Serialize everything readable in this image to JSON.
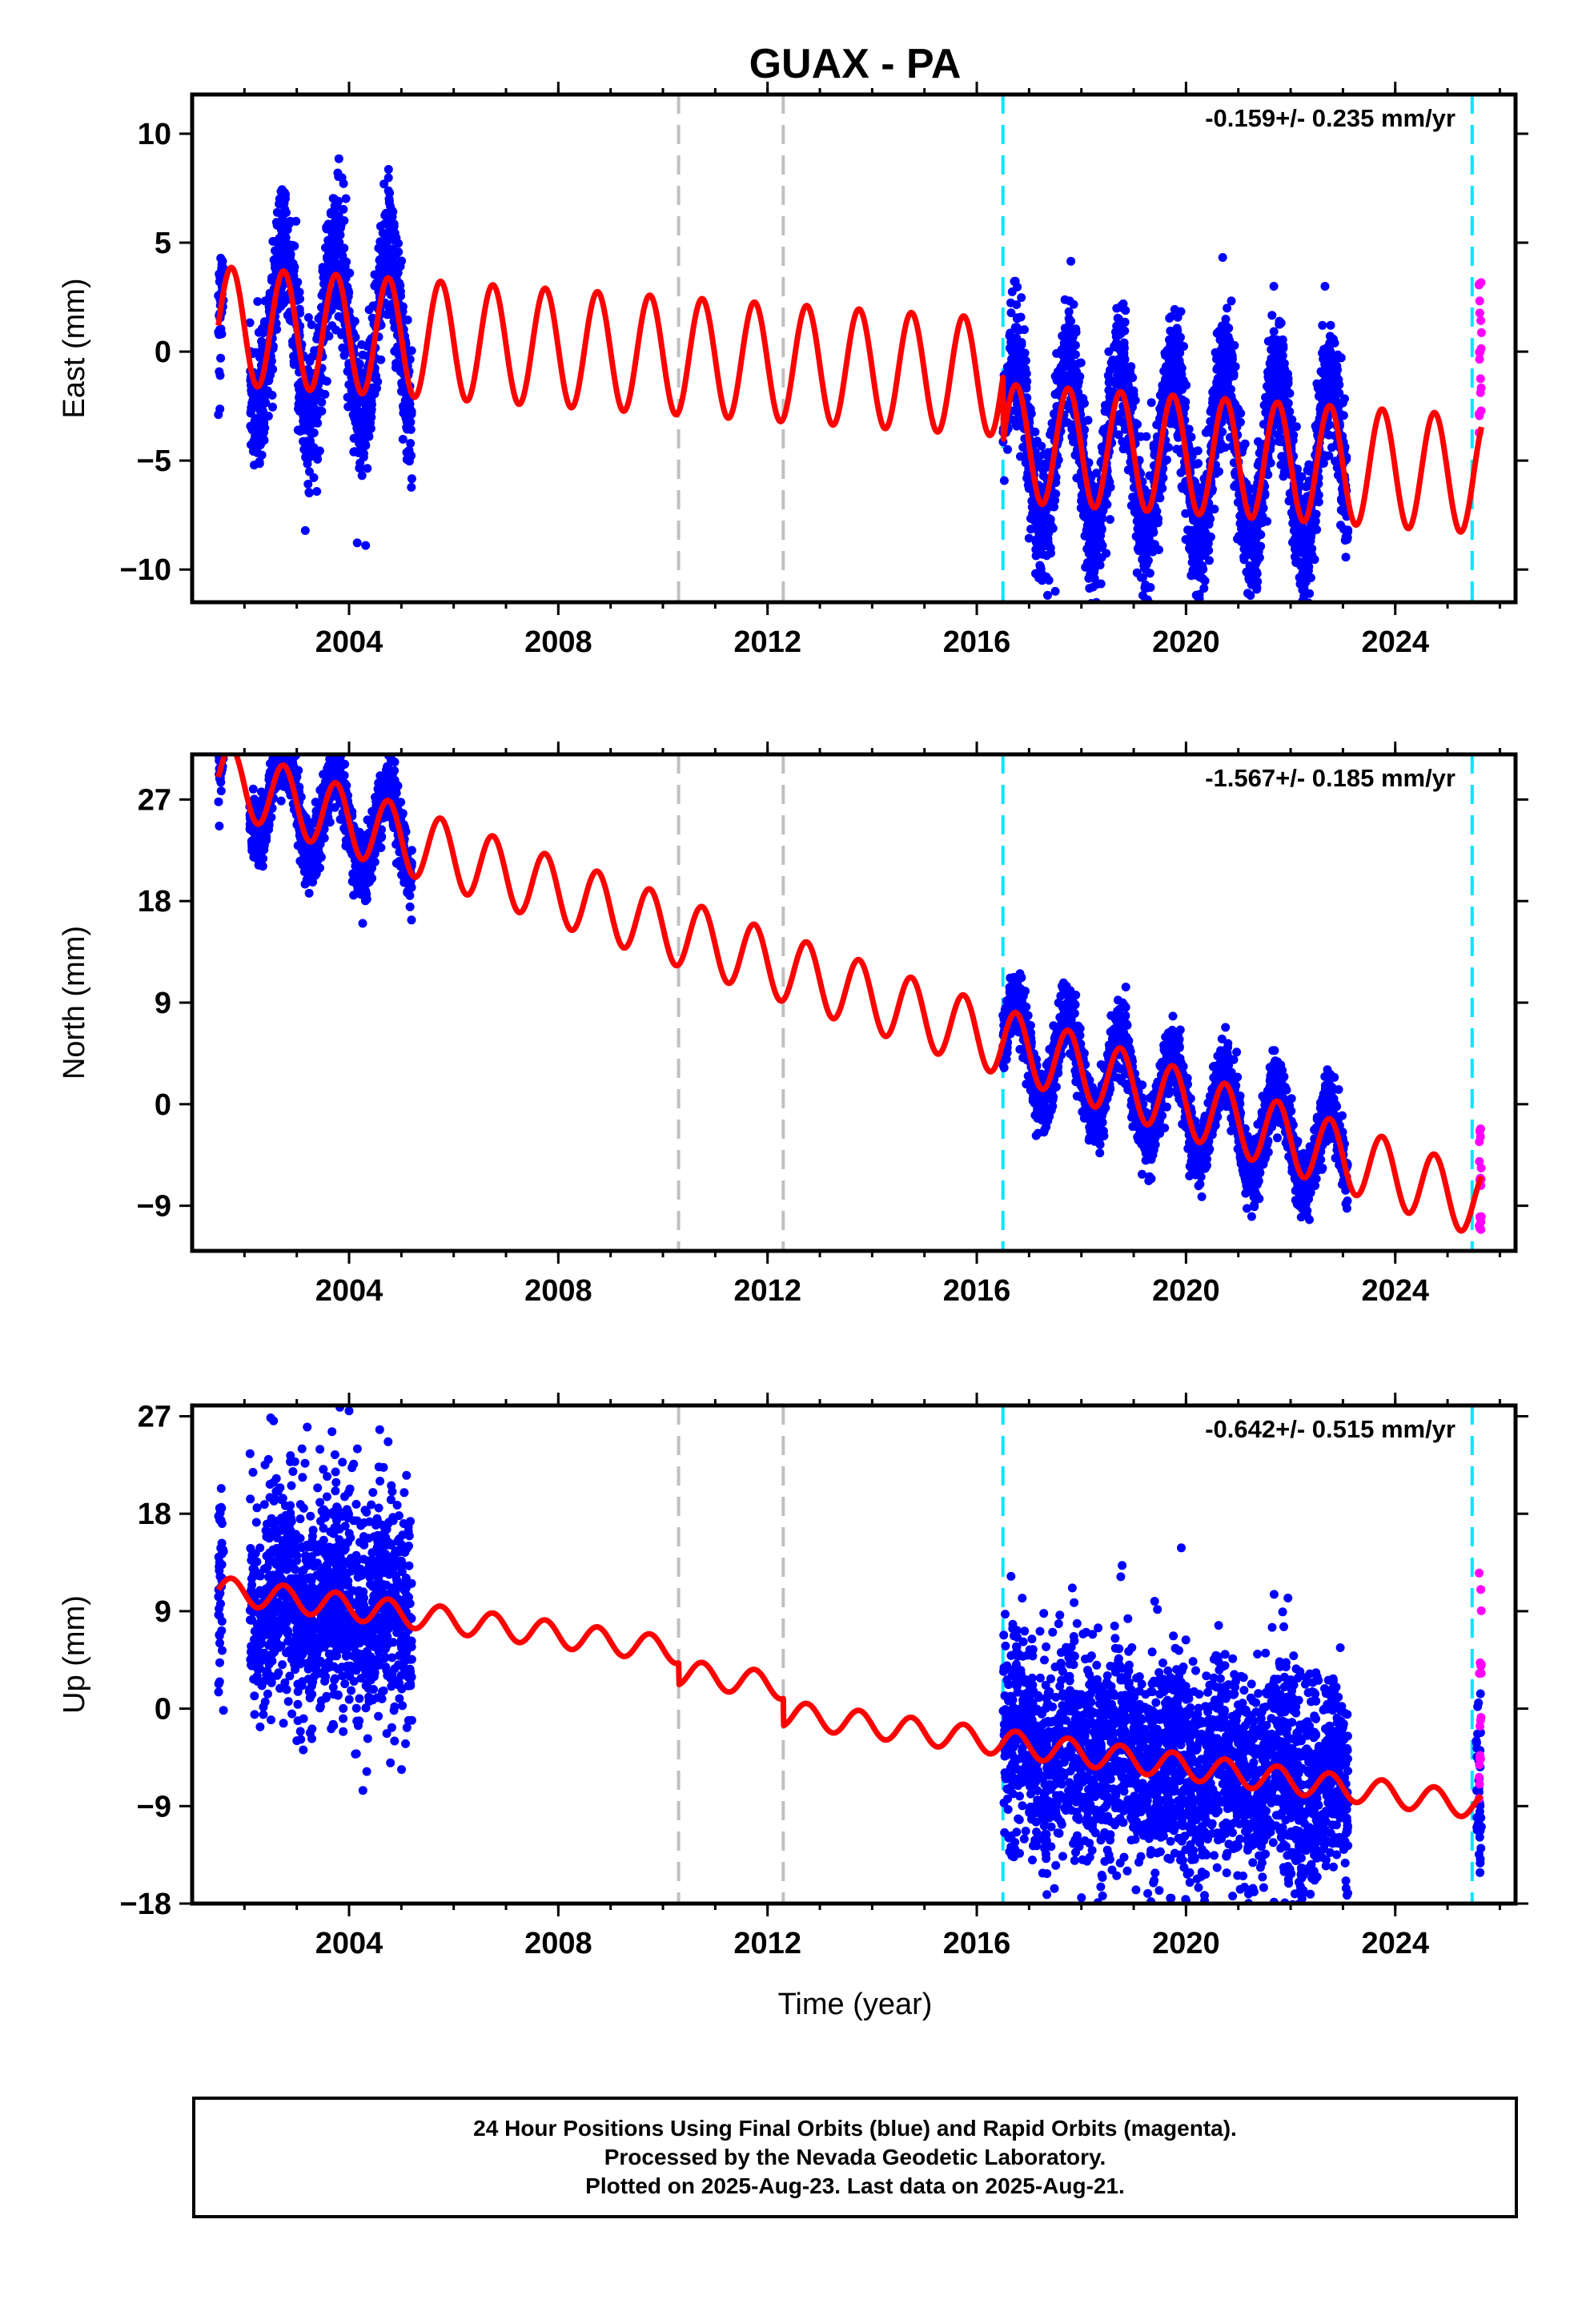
{
  "title": "GUAX - PA",
  "xlabel": "Time (year)",
  "footer": {
    "line1": "24 Hour Positions Using Final Orbits (blue) and Rapid Orbits (magenta).",
    "line2": "Processed by the Nevada Geodetic Laboratory.",
    "line3": "Plotted on 2025-Aug-23. Last data on 2025-Aug-21."
  },
  "colors": {
    "final_orbits": "#0000ff",
    "rapid_orbits": "#ff00ff",
    "model": "#ff0000",
    "equipment_change": "#c0c0c0",
    "event": "#00e5ff"
  },
  "chart_data": [
    {
      "type": "scatter",
      "ylabel": "East (mm)",
      "rate_label": "-0.159+/- 0.235 mm/yr",
      "xlim": [
        2001.0,
        2026.3
      ],
      "ylim": [
        -11.5,
        11.8
      ],
      "xticks": [
        2004,
        2008,
        2012,
        2016,
        2020,
        2024
      ],
      "yticks": [
        -10,
        -5,
        0,
        5,
        10
      ],
      "vlines_gray": [
        2010.3,
        2012.3
      ],
      "vlines_cyan": [
        2016.5,
        2025.47
      ],
      "final_orbits": {
        "x_range": [
          [
            2001.5,
            2001.6
          ],
          [
            2002.1,
            2005.2
          ],
          [
            2016.5,
            2023.1
          ]
        ],
        "amplitude": 3.5,
        "noise": 1.5
      },
      "rapid_orbits": {
        "x_range": [
          2025.6,
          2025.65
        ],
        "y_range": [
          -4,
          3.8
        ]
      },
      "model": {
        "start": 2001.5,
        "end": 2025.65,
        "offset_2001_5": 1.2,
        "rate": -0.159,
        "annual_amplitude": 2.7,
        "steps": [
          {
            "x": 2016.5,
            "dy": -3.0
          }
        ]
      },
      "outliers": [
        [
          2017.5,
          -11.0
        ],
        [
          2017.2,
          -6.6
        ]
      ]
    },
    {
      "type": "scatter",
      "ylabel": "North (mm)",
      "rate_label": "-1.567+/- 0.185 mm/yr",
      "xlim": [
        2001.0,
        2026.3
      ],
      "ylim": [
        -13,
        31
      ],
      "xticks": [
        2004,
        2008,
        2012,
        2016,
        2020,
        2024
      ],
      "yticks": [
        -9,
        0,
        9,
        18,
        27
      ],
      "vlines_gray": [
        2010.3,
        2012.3
      ],
      "vlines_cyan": [
        2016.5,
        2025.47
      ],
      "final_orbits": {
        "x_range": [
          [
            2001.5,
            2001.6
          ],
          [
            2002.1,
            2005.2
          ],
          [
            2016.5,
            2023.1
          ]
        ],
        "amplitude": 3.0,
        "noise": 1.4
      },
      "rapid_orbits": {
        "x_range": [
          2025.6,
          2025.65
        ],
        "y_range": [
          -12,
          -2
        ]
      },
      "model": {
        "start": 2001.5,
        "end": 2025.65,
        "offset_2001_5": 29.0,
        "rate": -1.567,
        "annual_amplitude": 3.0,
        "steps": []
      },
      "outliers": []
    },
    {
      "type": "scatter",
      "ylabel": "Up (mm)",
      "rate_label": "-0.642+/- 0.515 mm/yr",
      "xlim": [
        2001.0,
        2026.3
      ],
      "ylim": [
        -18,
        28
      ],
      "xticks": [
        2004,
        2008,
        2012,
        2016,
        2020,
        2024
      ],
      "yticks": [
        -18,
        -9,
        0,
        9,
        18,
        27
      ],
      "vlines_gray": [
        2010.3,
        2012.3
      ],
      "vlines_cyan": [
        2016.5,
        2025.47
      ],
      "final_orbits": {
        "x_range": [
          [
            2001.5,
            2001.6
          ],
          [
            2002.1,
            2005.2
          ],
          [
            2016.5,
            2023.1
          ],
          [
            2025.55,
            2025.65
          ]
        ],
        "amplitude": 1.5,
        "noise": 5.0
      },
      "rapid_orbits": {
        "x_range": [
          2025.6,
          2025.65
        ],
        "y_range": [
          -10,
          13.5
        ]
      },
      "model": {
        "start": 2001.5,
        "end": 2025.65,
        "offset_2001_5": 11.0,
        "rate": -0.642,
        "annual_amplitude": 1.2,
        "steps": [
          {
            "x": 2010.3,
            "dy": -2.0
          },
          {
            "x": 2012.3,
            "dy": -2.5
          }
        ]
      },
      "outliers": [
        [
          2003.1,
          24
        ],
        [
          2003.2,
          26
        ],
        [
          2004.0,
          27.5
        ],
        [
          2019.7,
          -17.5
        ]
      ]
    }
  ]
}
